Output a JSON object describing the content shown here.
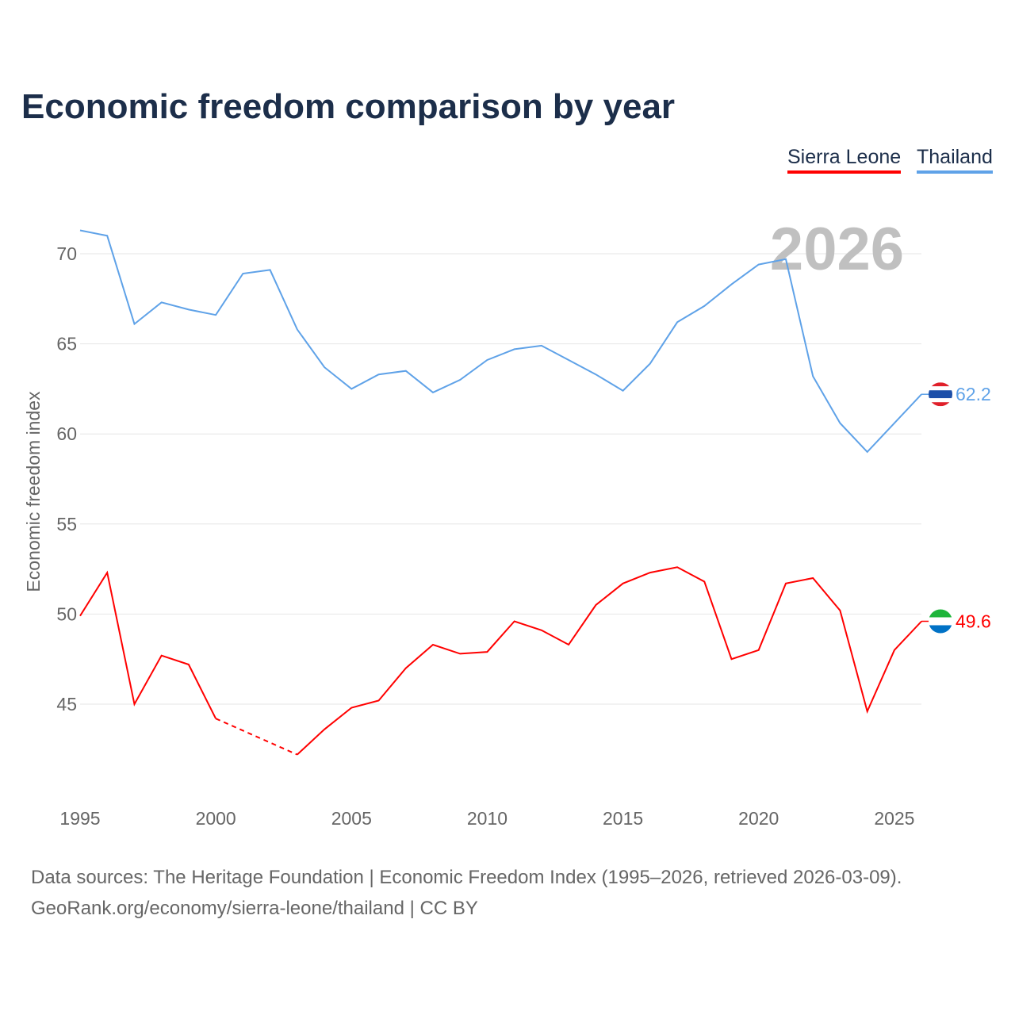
{
  "chart_data": {
    "type": "line",
    "title": "Economic freedom comparison by year",
    "xlabel": "",
    "ylabel": "Economic freedom index",
    "xlim": [
      1995,
      2026
    ],
    "ylim": [
      41.5,
      72.5
    ],
    "x_ticks": [
      1995,
      2000,
      2005,
      2010,
      2015,
      2020,
      2025
    ],
    "y_ticks": [
      45,
      50,
      55,
      60,
      65,
      70
    ],
    "grid": true,
    "legend_position": "top-right",
    "year_label": "2026",
    "x": [
      1995,
      1996,
      1997,
      1998,
      1999,
      2000,
      2001,
      2002,
      2003,
      2004,
      2005,
      2006,
      2007,
      2008,
      2009,
      2010,
      2011,
      2012,
      2013,
      2014,
      2015,
      2016,
      2017,
      2018,
      2019,
      2020,
      2021,
      2022,
      2023,
      2024,
      2025,
      2026
    ],
    "series": [
      {
        "name": "Sierra Leone",
        "color": "#ff0000",
        "flag": "sierra-leone-flag",
        "end_label": "49.6",
        "values": [
          49.9,
          52.3,
          45.0,
          47.7,
          47.2,
          44.2,
          null,
          null,
          42.2,
          43.6,
          44.8,
          45.2,
          47.0,
          48.3,
          47.8,
          47.9,
          49.6,
          49.1,
          48.3,
          50.5,
          51.7,
          52.3,
          52.6,
          51.8,
          47.5,
          48.0,
          51.7,
          52.0,
          50.2,
          44.6,
          48.0,
          49.6
        ]
      },
      {
        "name": "Thailand",
        "color": "#5fa2e8",
        "flag": "thailand-flag",
        "end_label": "62.2",
        "values": [
          71.3,
          71.0,
          66.1,
          67.3,
          66.9,
          66.6,
          68.9,
          69.1,
          65.8,
          63.7,
          62.5,
          63.3,
          63.5,
          62.3,
          63.0,
          64.1,
          64.7,
          64.9,
          64.1,
          63.3,
          62.4,
          63.9,
          66.2,
          67.1,
          68.3,
          69.4,
          69.7,
          63.2,
          60.6,
          59.0,
          60.6,
          62.2
        ]
      }
    ]
  },
  "footer": {
    "line1": "Data sources: The Heritage Foundation | Economic Freedom Index (1995–2026, retrieved 2026-03-09).",
    "line2": "GeoRank.org/economy/sierra-leone/thailand | CC BY"
  }
}
